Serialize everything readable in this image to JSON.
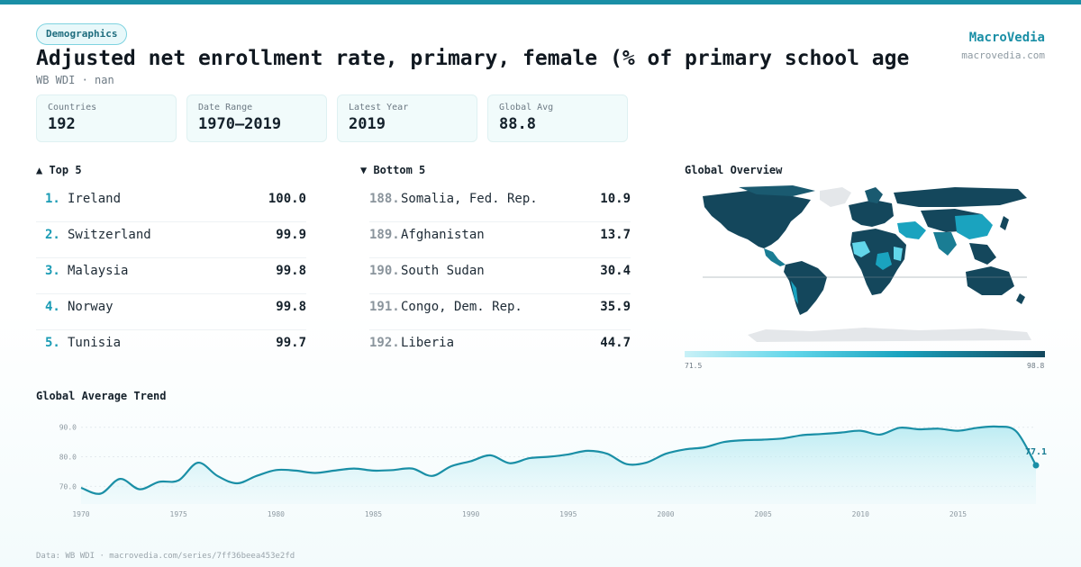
{
  "header": {
    "badge": "Demographics",
    "title": "Adjusted net enrollment rate, primary, female (% of primary school age c…",
    "subtitle": "WB WDI · nan",
    "brand": "MacroVedia",
    "brand_url": "macrovedia.com"
  },
  "stats": [
    {
      "label": "Countries",
      "value": "192"
    },
    {
      "label": "Date Range",
      "value": "1970–2019"
    },
    {
      "label": "Latest Year",
      "value": "2019"
    },
    {
      "label": "Global Avg",
      "value": "88.8"
    }
  ],
  "top5": {
    "heading": "▲ Top 5",
    "items": [
      {
        "rank": "1.",
        "name": "Ireland",
        "value": "100.0"
      },
      {
        "rank": "2.",
        "name": "Switzerland",
        "value": "99.9"
      },
      {
        "rank": "3.",
        "name": "Malaysia",
        "value": "99.8"
      },
      {
        "rank": "4.",
        "name": "Norway",
        "value": "99.8"
      },
      {
        "rank": "5.",
        "name": "Tunisia",
        "value": "99.7"
      }
    ]
  },
  "bottom5": {
    "heading": "▼ Bottom 5",
    "items": [
      {
        "rank": "188.",
        "name": "Somalia, Fed. Rep.",
        "value": "10.9"
      },
      {
        "rank": "189.",
        "name": "Afghanistan",
        "value": "13.7"
      },
      {
        "rank": "190.",
        "name": "South Sudan",
        "value": "30.4"
      },
      {
        "rank": "191.",
        "name": "Congo, Dem. Rep.",
        "value": "35.9"
      },
      {
        "rank": "192.",
        "name": "Liberia",
        "value": "44.7"
      }
    ]
  },
  "map": {
    "heading": "Global Overview",
    "legend_min": "71.5",
    "legend_max": "98.8",
    "colors": {
      "land_dark": "#14475c",
      "land_mid": "#1aa3bf",
      "land_light": "#62d6ea",
      "no_data": "#e4e7ea"
    }
  },
  "trend": {
    "heading": "Global Average Trend",
    "last_label": "77.1"
  },
  "chart_data": {
    "type": "area",
    "title": "Global Average Trend",
    "xlabel": "",
    "ylabel": "",
    "x": [
      1970,
      1971,
      1972,
      1973,
      1974,
      1975,
      1976,
      1977,
      1978,
      1979,
      1980,
      1981,
      1982,
      1983,
      1984,
      1985,
      1986,
      1987,
      1988,
      1989,
      1990,
      1991,
      1992,
      1993,
      1994,
      1995,
      1996,
      1997,
      1998,
      1999,
      2000,
      2001,
      2002,
      2003,
      2004,
      2005,
      2006,
      2007,
      2008,
      2009,
      2010,
      2011,
      2012,
      2013,
      2014,
      2015,
      2016,
      2017,
      2018,
      2019
    ],
    "values": [
      69.5,
      67.5,
      72.5,
      69.0,
      71.5,
      72.0,
      78.0,
      73.5,
      71.0,
      73.5,
      75.5,
      75.3,
      74.5,
      75.3,
      76.0,
      75.3,
      75.5,
      76.0,
      73.5,
      76.8,
      78.5,
      80.5,
      77.8,
      79.5,
      80.0,
      80.8,
      82.0,
      81.0,
      77.5,
      78.0,
      81.0,
      82.5,
      83.2,
      85.0,
      85.6,
      85.8,
      86.2,
      87.3,
      87.7,
      88.2,
      88.8,
      87.5,
      89.8,
      89.3,
      89.5,
      88.8,
      89.8,
      90.2,
      88.5,
      77.1
    ],
    "xticks": [
      "1970",
      "1975",
      "1980",
      "1985",
      "1990",
      "1995",
      "2000",
      "2005",
      "2010",
      "2015"
    ],
    "yticks": [
      "70.0",
      "80.0",
      "90.0"
    ],
    "ylim": [
      64,
      96
    ],
    "grid": true,
    "color": "#1a8fa6"
  },
  "footer": "Data: WB WDI · macrovedia.com/series/7ff36beea453e2fd"
}
